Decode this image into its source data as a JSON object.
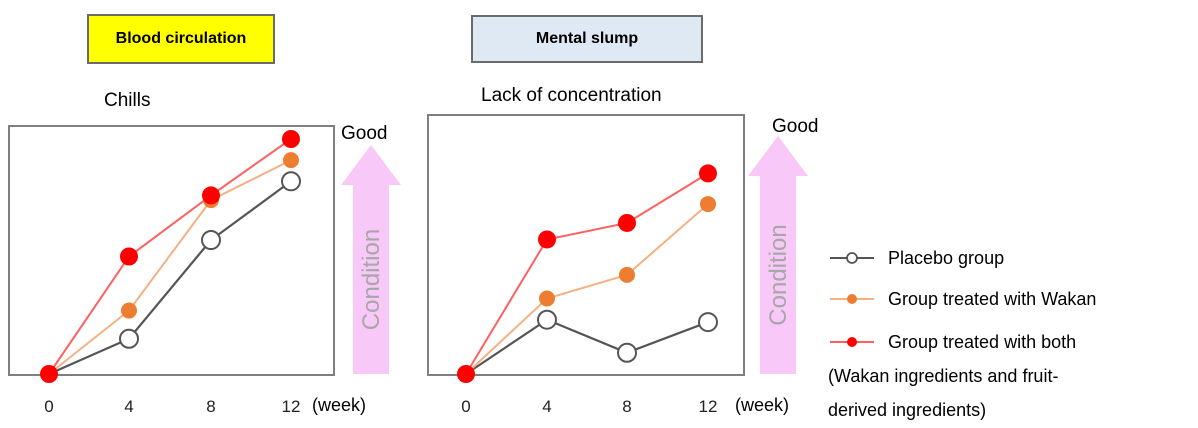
{
  "colors": {
    "placebo": "#555555",
    "wakan": "#ed7d31",
    "wakan_line": "#f4b183",
    "both": "#ff0000",
    "both_line": "#ff6060",
    "arrow": "#f8c8f8"
  },
  "chart_data": [
    {
      "type": "line",
      "category": "Blood circulation",
      "title": "Chills",
      "x": [
        0,
        4,
        8,
        12
      ],
      "xunit": "(week)",
      "good_label": "Good",
      "arrow_label": "Condition",
      "series": [
        {
          "name": "Placebo group",
          "values": [
            0,
            0.15,
            0.57,
            0.82
          ]
        },
        {
          "name": "Group treated with Wakan",
          "values": [
            0,
            0.27,
            0.74,
            0.91
          ]
        },
        {
          "name": "Group treated with both (Wakan ingredients and fruit-derived ingredients)",
          "values": [
            0,
            0.5,
            0.76,
            1.0
          ]
        }
      ]
    },
    {
      "type": "line",
      "category": "Mental slump",
      "title": "Lack of concentration",
      "x": [
        0,
        4,
        8,
        12
      ],
      "xunit": "(week)",
      "good_label": "Good",
      "arrow_label": "Condition",
      "series": [
        {
          "name": "Placebo group",
          "values": [
            0,
            0.23,
            0.09,
            0.22
          ]
        },
        {
          "name": "Group treated with Wakan",
          "values": [
            0,
            0.32,
            0.42,
            0.72
          ]
        },
        {
          "name": "Group treated with both (Wakan ingredients and fruit-derived ingredients)",
          "values": [
            0,
            0.57,
            0.64,
            0.85
          ]
        }
      ]
    }
  ],
  "legend": [
    {
      "key": "placebo",
      "lines": [
        "Placebo group"
      ]
    },
    {
      "key": "wakan",
      "lines": [
        "Group treated with Wakan"
      ]
    },
    {
      "key": "both",
      "lines": [
        "Group treated with both",
        "(Wakan ingredients and fruit-",
        "derived ingredients)"
      ]
    }
  ]
}
